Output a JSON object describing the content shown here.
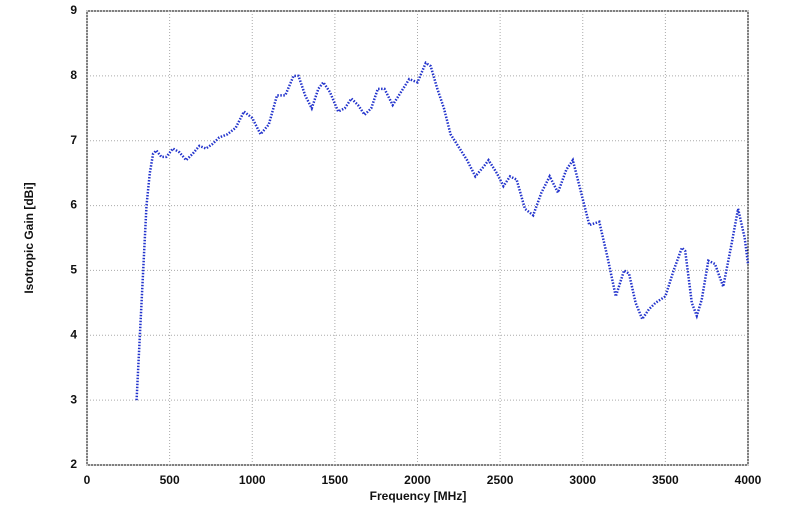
{
  "chart_data": {
    "type": "line",
    "xlabel": "Frequency [MHz]",
    "ylabel": "Isotropic Gain [dBi]",
    "x": [
      300,
      320,
      340,
      360,
      380,
      400,
      420,
      450,
      480,
      520,
      560,
      600,
      640,
      680,
      720,
      760,
      800,
      850,
      900,
      950,
      1000,
      1050,
      1100,
      1150,
      1200,
      1250,
      1280,
      1320,
      1360,
      1400,
      1430,
      1470,
      1520,
      1560,
      1600,
      1640,
      1680,
      1720,
      1760,
      1800,
      1850,
      1900,
      1950,
      2000,
      2050,
      2080,
      2120,
      2160,
      2200,
      2250,
      2300,
      2350,
      2400,
      2430,
      2480,
      2520,
      2560,
      2600,
      2650,
      2700,
      2750,
      2800,
      2850,
      2900,
      2940,
      3000,
      3040,
      3100,
      3150,
      3200,
      3250,
      3280,
      3320,
      3360,
      3400,
      3440,
      3500,
      3550,
      3600,
      3620,
      3660,
      3690,
      3720,
      3760,
      3800,
      3850,
      3900,
      3940,
      3980,
      4000
    ],
    "series": [
      {
        "color": "#2233cc",
        "values": [
          3.0,
          4.0,
          5.0,
          6.0,
          6.5,
          6.8,
          6.85,
          6.75,
          6.75,
          6.88,
          6.82,
          6.7,
          6.8,
          6.92,
          6.88,
          6.95,
          7.05,
          7.1,
          7.2,
          7.45,
          7.35,
          7.1,
          7.25,
          7.7,
          7.7,
          8.0,
          8.0,
          7.7,
          7.5,
          7.8,
          7.9,
          7.75,
          7.45,
          7.5,
          7.65,
          7.55,
          7.4,
          7.5,
          7.8,
          7.8,
          7.55,
          7.75,
          7.95,
          7.9,
          8.2,
          8.15,
          7.8,
          7.5,
          7.1,
          6.9,
          6.7,
          6.45,
          6.6,
          6.7,
          6.5,
          6.3,
          6.45,
          6.4,
          5.95,
          5.85,
          6.2,
          6.45,
          6.2,
          6.55,
          6.7,
          6.1,
          5.7,
          5.75,
          5.2,
          4.6,
          5.0,
          4.95,
          4.5,
          4.25,
          4.4,
          4.5,
          4.6,
          5.0,
          5.35,
          5.3,
          4.5,
          4.3,
          4.55,
          5.15,
          5.1,
          4.75,
          5.4,
          5.95,
          5.5,
          5.1
        ]
      }
    ],
    "xlim": [
      0,
      4000
    ],
    "xticks": [
      0,
      500,
      1000,
      1500,
      2000,
      2500,
      3000,
      3500,
      4000
    ],
    "ylim": [
      2,
      9
    ],
    "yticks": [
      2,
      3,
      4,
      5,
      6,
      7,
      8,
      9
    ],
    "grid": true
  }
}
